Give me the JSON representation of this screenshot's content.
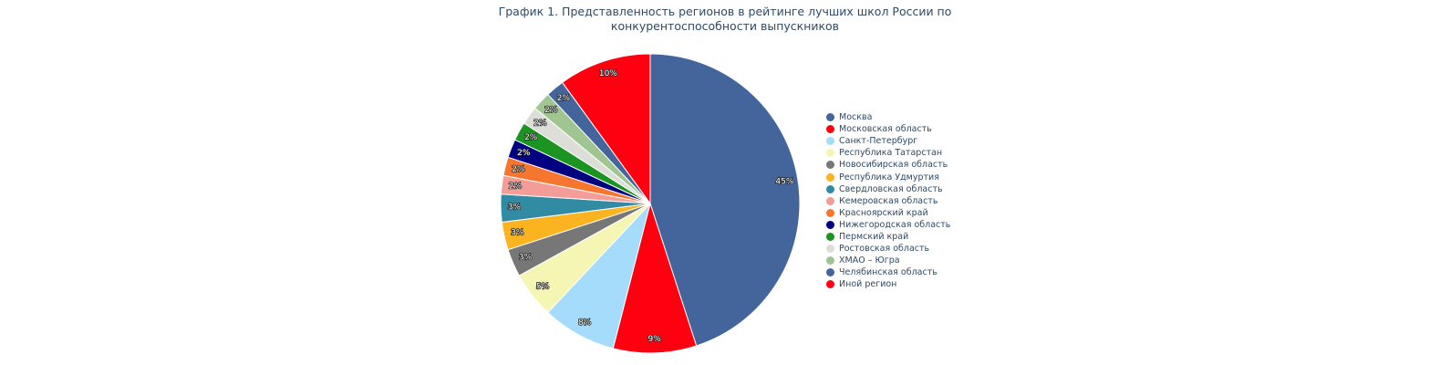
{
  "chart_data": {
    "type": "pie",
    "title_lines": [
      "График 1. Представленность регионов в рейтинге лучших школ России по",
      "конкурентоспособности выпускников"
    ],
    "legend_position": "right",
    "slices": [
      {
        "label": "Москва",
        "value": 45,
        "text": "45%",
        "color": "#44659b"
      },
      {
        "label": "Московская область",
        "value": 9,
        "text": "9%",
        "color": "#ff0011"
      },
      {
        "label": "Санкт-Петербург",
        "value": 8,
        "text": "8%",
        "color": "#a5dcfb"
      },
      {
        "label": "Республика Татарстан",
        "value": 5,
        "text": "5%",
        "color": "#f6f6b4"
      },
      {
        "label": "Новосибирская область",
        "value": 3,
        "text": "3%",
        "color": "#777777"
      },
      {
        "label": "Республика Удмуртия",
        "value": 3,
        "text": "3%",
        "color": "#fbb41f"
      },
      {
        "label": "Свердловская область",
        "value": 3,
        "text": "3%",
        "color": "#318ba2"
      },
      {
        "label": "Кемеровская область",
        "value": 2,
        "text": "2%",
        "color": "#f49d98"
      },
      {
        "label": "Красноярский край",
        "value": 2,
        "text": "2%",
        "color": "#f4762f"
      },
      {
        "label": "Нижегородская область",
        "value": 2,
        "text": "2%",
        "color": "#000080"
      },
      {
        "label": "Пермский край",
        "value": 2,
        "text": "2%",
        "color": "#1b9422"
      },
      {
        "label": "Ростовская область",
        "value": 2,
        "text": "2%",
        "color": "#deded9"
      },
      {
        "label": "ХМАО – Югра",
        "value": 2,
        "text": "2%",
        "color": "#a0c590"
      },
      {
        "label": "Челябинская область",
        "value": 2,
        "text": "2%",
        "color": "#44659b"
      },
      {
        "label": "Иной регион",
        "value": 10,
        "text": "10%",
        "color": "#ff0011"
      }
    ]
  }
}
